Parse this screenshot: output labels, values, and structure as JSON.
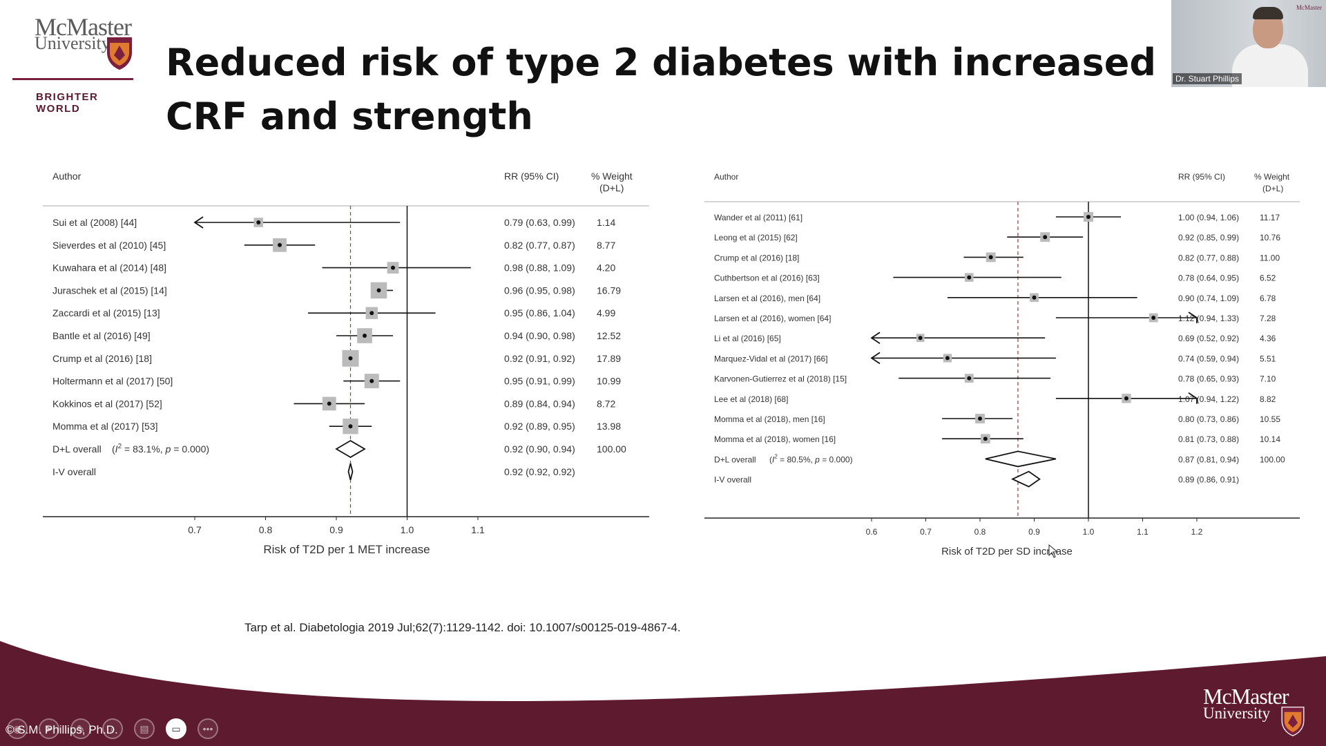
{
  "header": {
    "logo_line1": "McMaster",
    "logo_line2": "University",
    "logo_tagline": "BRIGHTER WORLD",
    "title": "Reduced risk of type 2 diabetes with increased CRF and strength"
  },
  "webcam": {
    "presenter_name": "Dr. Stuart Phillips"
  },
  "chart_data": [
    {
      "type": "forest",
      "columns": {
        "author": "Author",
        "rr": "RR (95% CI)",
        "weight_line1": "% Weight",
        "weight_line2": "(D+L)"
      },
      "xlabel": "Risk of T2D per 1 MET increase",
      "x_ticks": [
        "0.7",
        "0.8",
        "0.9",
        "1.0",
        "1.1"
      ],
      "xlim": [
        0.7,
        1.1
      ],
      "null_line": 1.0,
      "pooled_line": 0.92,
      "studies": [
        {
          "author": "Sui et al (2008) [44]",
          "rr": 0.79,
          "lo": 0.63,
          "hi": 0.99,
          "ci_text": "0.79 (0.63, 0.99)",
          "weight": "1.14",
          "arrow_left": true
        },
        {
          "author": "Sieverdes et al (2010) [45]",
          "rr": 0.82,
          "lo": 0.77,
          "hi": 0.87,
          "ci_text": "0.82 (0.77, 0.87)",
          "weight": "8.77"
        },
        {
          "author": "Kuwahara et al (2014) [48]",
          "rr": 0.98,
          "lo": 0.88,
          "hi": 1.09,
          "ci_text": "0.98 (0.88, 1.09)",
          "weight": "4.20"
        },
        {
          "author": "Juraschek et al (2015) [14]",
          "rr": 0.96,
          "lo": 0.95,
          "hi": 0.98,
          "ci_text": "0.96 (0.95, 0.98)",
          "weight": "16.79"
        },
        {
          "author": "Zaccardi et al (2015) [13]",
          "rr": 0.95,
          "lo": 0.86,
          "hi": 1.04,
          "ci_text": "0.95 (0.86, 1.04)",
          "weight": "4.99"
        },
        {
          "author": "Bantle et al (2016) [49]",
          "rr": 0.94,
          "lo": 0.9,
          "hi": 0.98,
          "ci_text": "0.94 (0.90, 0.98)",
          "weight": "12.52"
        },
        {
          "author": "Crump et al (2016) [18]",
          "rr": 0.92,
          "lo": 0.91,
          "hi": 0.92,
          "ci_text": "0.92 (0.91, 0.92)",
          "weight": "17.89"
        },
        {
          "author": "Holtermann et al (2017) [50]",
          "rr": 0.95,
          "lo": 0.91,
          "hi": 0.99,
          "ci_text": "0.95 (0.91, 0.99)",
          "weight": "10.99"
        },
        {
          "author": "Kokkinos et al (2017) [52]",
          "rr": 0.89,
          "lo": 0.84,
          "hi": 0.94,
          "ci_text": "0.89 (0.84, 0.94)",
          "weight": "8.72"
        },
        {
          "author": "Momma et al (2017) [53]",
          "rr": 0.92,
          "lo": 0.89,
          "hi": 0.95,
          "ci_text": "0.92 (0.89, 0.95)",
          "weight": "13.98"
        }
      ],
      "overall": [
        {
          "label": "D+L overall",
          "het_i2": "83.1%",
          "het_p": "0.000",
          "rr": 0.92,
          "lo": 0.9,
          "hi": 0.94,
          "ci_text": "0.92 (0.90, 0.94)",
          "weight": "100.00"
        },
        {
          "label": "I-V overall",
          "rr": 0.92,
          "lo": 0.92,
          "hi": 0.92,
          "ci_text": "0.92 (0.92, 0.92)",
          "weight": ""
        }
      ]
    },
    {
      "type": "forest",
      "columns": {
        "author": "Author",
        "rr": "RR (95% CI)",
        "weight_line1": "% Weight",
        "weight_line2": "(D+L)"
      },
      "xlabel": "Risk of T2D per SD increase",
      "x_ticks": [
        "0.6",
        "0.7",
        "0.8",
        "0.9",
        "1.0",
        "1.1",
        "1.2"
      ],
      "xlim": [
        0.6,
        1.2
      ],
      "null_line": 1.0,
      "pooled_line": 0.87,
      "studies": [
        {
          "author": "Wander et al (2011) [61]",
          "rr": 1.0,
          "lo": 0.94,
          "hi": 1.06,
          "ci_text": "1.00 (0.94, 1.06)",
          "weight": "11.17"
        },
        {
          "author": "Leong et al (2015) [62]",
          "rr": 0.92,
          "lo": 0.85,
          "hi": 0.99,
          "ci_text": "0.92 (0.85, 0.99)",
          "weight": "10.76"
        },
        {
          "author": "Crump et al (2016) [18]",
          "rr": 0.82,
          "lo": 0.77,
          "hi": 0.88,
          "ci_text": "0.82 (0.77, 0.88)",
          "weight": "11.00"
        },
        {
          "author": "Cuthbertson et al (2016) [63]",
          "rr": 0.78,
          "lo": 0.64,
          "hi": 0.95,
          "ci_text": "0.78 (0.64, 0.95)",
          "weight": "6.52"
        },
        {
          "author": "Larsen et al (2016), men [64]",
          "rr": 0.9,
          "lo": 0.74,
          "hi": 1.09,
          "ci_text": "0.90 (0.74, 1.09)",
          "weight": "6.78"
        },
        {
          "author": "Larsen et al (2016), women [64]",
          "rr": 1.12,
          "lo": 0.94,
          "hi": 1.33,
          "ci_text": "1.12 (0.94, 1.33)",
          "weight": "7.28",
          "arrow_right": true
        },
        {
          "author": "Li et al (2016) [65]",
          "rr": 0.69,
          "lo": 0.52,
          "hi": 0.92,
          "ci_text": "0.69 (0.52, 0.92)",
          "weight": "4.36",
          "arrow_left": true
        },
        {
          "author": "Marquez-Vidal et al (2017) [66]",
          "rr": 0.74,
          "lo": 0.59,
          "hi": 0.94,
          "ci_text": "0.74 (0.59, 0.94)",
          "weight": "5.51",
          "arrow_left": true
        },
        {
          "author": "Karvonen-Gutierrez et al (2018) [15]",
          "rr": 0.78,
          "lo": 0.65,
          "hi": 0.93,
          "ci_text": "0.78 (0.65, 0.93)",
          "weight": "7.10"
        },
        {
          "author": "Lee et al (2018) [68]",
          "rr": 1.07,
          "lo": 0.94,
          "hi": 1.22,
          "ci_text": "1.07 (0.94, 1.22)",
          "weight": "8.82",
          "arrow_right": true
        },
        {
          "author": "Momma et al (2018), men [16]",
          "rr": 0.8,
          "lo": 0.73,
          "hi": 0.86,
          "ci_text": "0.80 (0.73, 0.86)",
          "weight": "10.55"
        },
        {
          "author": "Momma et al (2018), women [16]",
          "rr": 0.81,
          "lo": 0.73,
          "hi": 0.88,
          "ci_text": "0.81 (0.73, 0.88)",
          "weight": "10.14"
        }
      ],
      "overall": [
        {
          "label": "D+L overall",
          "het_i2": "80.5%",
          "het_p": "0.000",
          "rr": 0.87,
          "lo": 0.81,
          "hi": 0.94,
          "ci_text": "0.87 (0.81, 0.94)",
          "weight": "100.00"
        },
        {
          "label": "I-V overall",
          "rr": 0.89,
          "lo": 0.86,
          "hi": 0.91,
          "ci_text": "0.89 (0.86, 0.91)",
          "weight": ""
        }
      ]
    }
  ],
  "citation": "Tarp et al. Diabetologia 2019 Jul;62(7):1129-1142. doi: 10.1007/s00125-019-4867-4.",
  "footer": {
    "copyright": "© S.M. Phillips, Ph.D.",
    "logo_line1": "McMaster",
    "logo_line2": "University"
  },
  "colors": {
    "maroon": "#5e1a2e",
    "accent": "#7a1f3d"
  },
  "controls": [
    "mic-icon",
    "pointer-icon",
    "pen-icon",
    "zoom-icon",
    "slides-icon",
    "camera-icon",
    "more-icon"
  ]
}
